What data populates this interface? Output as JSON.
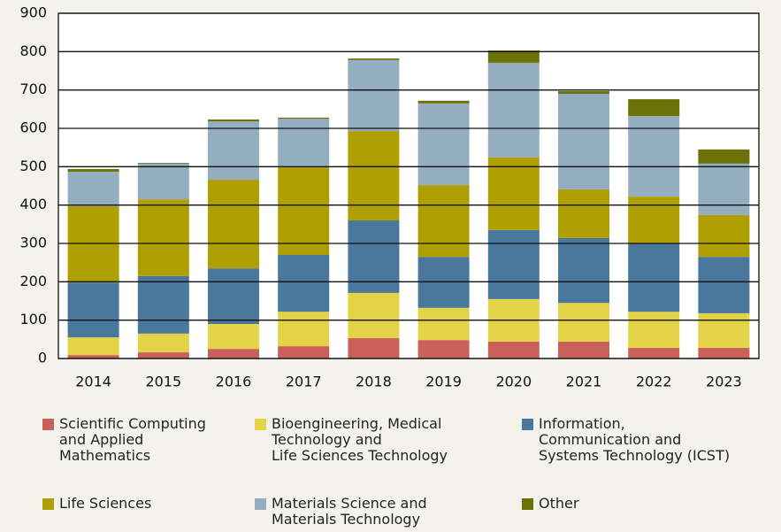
{
  "chart_data": {
    "type": "stacked_bar",
    "categories": [
      "2014",
      "2015",
      "2016",
      "2017",
      "2018",
      "2019",
      "2020",
      "2021",
      "2022",
      "2023"
    ],
    "series": [
      {
        "name": "Scientific Computing\nand Applied\nMathematics",
        "color": "#c9605a",
        "values": [
          9,
          16,
          25,
          32,
          53,
          48,
          44,
          44,
          28,
          28
        ]
      },
      {
        "name": "Bioengineering, Medical\nTechnology and\nLife Sciences Technology",
        "color": "#e3d447",
        "values": [
          46,
          49,
          65,
          90,
          118,
          84,
          111,
          101,
          94,
          90
        ]
      },
      {
        "name": "Information,\nCommunication and\nSystems Technology (ICST)",
        "color": "#4a789c",
        "values": [
          143,
          150,
          145,
          148,
          189,
          133,
          180,
          169,
          178,
          147
        ]
      },
      {
        "name": "Life Sciences",
        "color": "#b09f00",
        "values": [
          199,
          200,
          231,
          231,
          233,
          187,
          189,
          127,
          122,
          109
        ]
      },
      {
        "name": "Materials Science and\nMaterials Technology",
        "color": "#94aebf",
        "values": [
          90,
          93,
          152,
          124,
          185,
          213,
          247,
          249,
          210,
          134
        ]
      },
      {
        "name": "Other",
        "color": "#6b7208",
        "values": [
          7,
          2,
          5,
          3,
          4,
          7,
          32,
          7,
          44,
          37
        ]
      }
    ],
    "ylim": [
      0,
      900
    ],
    "yticks": [
      0,
      100,
      200,
      300,
      400,
      500,
      600,
      700,
      800,
      900
    ],
    "grid": true
  }
}
